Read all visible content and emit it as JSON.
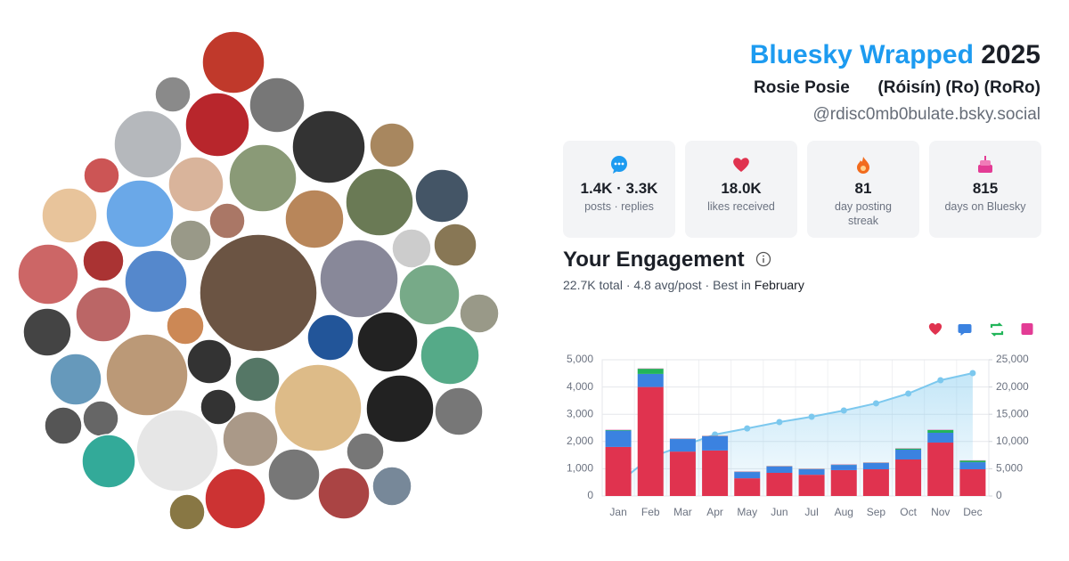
{
  "header": {
    "brand": "Bluesky Wrapped",
    "year": "2025",
    "display_name": "Rosie Posie      (Róisín) (Ro) (RoRo)",
    "handle": "@rdisc0mb0bulate.bsky.social"
  },
  "stats": [
    {
      "value": "1.4K · 3.3K",
      "label": "posts · replies"
    },
    {
      "value": "18.0K",
      "label": "likes received"
    },
    {
      "value": "81",
      "label": "day posting streak"
    },
    {
      "value": "815",
      "label": "days on Bluesky"
    }
  ],
  "engagement": {
    "title": "Your Engagement",
    "summary": "22.7K total · 4.8 avg/post · Best in",
    "best_month": "February"
  },
  "chart_data": {
    "type": "bar",
    "categories": [
      "Jan",
      "Feb",
      "Mar",
      "Apr",
      "May",
      "Jun",
      "Jul",
      "Aug",
      "Sep",
      "Oct",
      "Nov",
      "Dec"
    ],
    "series": [
      {
        "color": "#e0334f",
        "values": [
          1800,
          4000,
          1630,
          1670,
          650,
          850,
          780,
          950,
          980,
          1340,
          1960,
          980
        ]
      },
      {
        "color": "#3b82e0",
        "values": [
          600,
          480,
          460,
          520,
          230,
          230,
          200,
          190,
          230,
          360,
          360,
          260
        ]
      },
      {
        "color": "#22b55a",
        "values": [
          20,
          190,
          10,
          10,
          10,
          10,
          10,
          10,
          10,
          40,
          100,
          60
        ]
      },
      {
        "color": "#e33c95",
        "values": [
          10,
          10,
          10,
          10,
          10,
          10,
          10,
          10,
          10,
          10,
          10,
          10
        ]
      },
      {
        "color": "#7cc8ee",
        "axis": "y2",
        "values": [
          2400,
          7100,
          9200,
          11270,
          12400,
          13560,
          14540,
          15690,
          17000,
          18800,
          21240,
          22550
        ]
      }
    ],
    "ylim": [
      0,
      5000
    ],
    "yticks": [
      0,
      {
        "value": 1000,
        "label": "1,000"
      },
      {
        "value": 2000,
        "label": "2,000"
      },
      {
        "value": 3000,
        "label": "3,000"
      },
      {
        "value": 4000,
        "label": "4,000"
      },
      {
        "value": 5000,
        "label": "5,000"
      }
    ],
    "y2lim": [
      0,
      25000
    ],
    "y2ticks": [
      0,
      {
        "value": 5000,
        "label": "5,000"
      },
      {
        "value": 10000,
        "label": "10,000"
      },
      {
        "value": 15000,
        "label": "15,000"
      },
      {
        "value": 20000,
        "label": "20,000"
      },
      {
        "value": 25000,
        "label": "25,000"
      }
    ],
    "grid": true
  }
}
